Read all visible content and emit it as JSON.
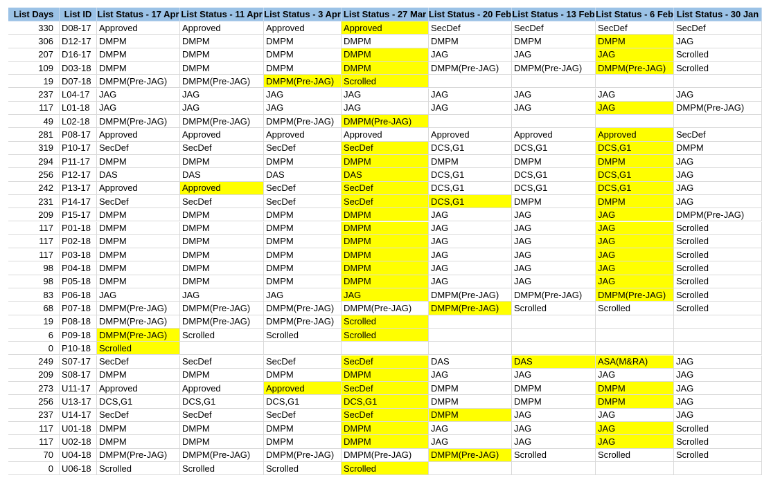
{
  "table": {
    "header": [
      "List Days",
      "List ID",
      "List Status - 17 Apr",
      "List Status - 11 Apr",
      "List Status - 3 Apr",
      "List Status - 27 Mar",
      "List Status - 20 Feb",
      "List Status - 13 Feb",
      "List Status - 6 Feb",
      "List Status - 30 Jan"
    ],
    "rows": [
      [
        330,
        "D08-17",
        "Approved",
        "Approved",
        "Approved",
        "Approved",
        "SecDef",
        "SecDef",
        "SecDef",
        "SecDef"
      ],
      [
        306,
        "D12-17",
        "DMPM",
        "DMPM",
        "DMPM",
        "DMPM",
        "DMPM",
        "DMPM",
        "DMPM",
        "JAG"
      ],
      [
        207,
        "D16-17",
        "DMPM",
        "DMPM",
        "DMPM",
        "DMPM",
        "JAG",
        "JAG",
        "JAG",
        "Scrolled"
      ],
      [
        109,
        "D03-18",
        "DMPM",
        "DMPM",
        "DMPM",
        "DMPM",
        "DMPM(Pre-JAG)",
        "DMPM(Pre-JAG)",
        "DMPM(Pre-JAG)",
        "Scrolled"
      ],
      [
        19,
        "D07-18",
        "DMPM(Pre-JAG)",
        "DMPM(Pre-JAG)",
        "DMPM(Pre-JAG)",
        "Scrolled",
        null,
        null,
        null,
        null
      ],
      [
        237,
        "L04-17",
        "JAG",
        "JAG",
        "JAG",
        "JAG",
        "JAG",
        "JAG",
        "JAG",
        "JAG"
      ],
      [
        117,
        "L01-18",
        "JAG",
        "JAG",
        "JAG",
        "JAG",
        "JAG",
        "JAG",
        "JAG",
        "DMPM(Pre-JAG)"
      ],
      [
        49,
        "L02-18",
        "DMPM(Pre-JAG)",
        "DMPM(Pre-JAG)",
        "DMPM(Pre-JAG)",
        "DMPM(Pre-JAG)",
        null,
        null,
        null,
        null
      ],
      [
        281,
        "P08-17",
        "Approved",
        "Approved",
        "Approved",
        "Approved",
        "Approved",
        "Approved",
        "Approved",
        "SecDef"
      ],
      [
        319,
        "P10-17",
        "SecDef",
        "SecDef",
        "SecDef",
        "SecDef",
        "DCS,G1",
        "DCS,G1",
        "DCS,G1",
        "DMPM"
      ],
      [
        294,
        "P11-17",
        "DMPM",
        "DMPM",
        "DMPM",
        "DMPM",
        "DMPM",
        "DMPM",
        "DMPM",
        "JAG"
      ],
      [
        256,
        "P12-17",
        "DAS",
        "DAS",
        "DAS",
        "DAS",
        "DCS,G1",
        "DCS,G1",
        "DCS,G1",
        "JAG"
      ],
      [
        242,
        "P13-17",
        "Approved",
        "Approved",
        "SecDef",
        "SecDef",
        "DCS,G1",
        "DCS,G1",
        "DCS,G1",
        "JAG"
      ],
      [
        231,
        "P14-17",
        "SecDef",
        "SecDef",
        "SecDef",
        "SecDef",
        "DCS,G1",
        "DMPM",
        "DMPM",
        "JAG"
      ],
      [
        209,
        "P15-17",
        "DMPM",
        "DMPM",
        "DMPM",
        "DMPM",
        "JAG",
        "JAG",
        "JAG",
        "DMPM(Pre-JAG)"
      ],
      [
        117,
        "P01-18",
        "DMPM",
        "DMPM",
        "DMPM",
        "DMPM",
        "JAG",
        "JAG",
        "JAG",
        "Scrolled"
      ],
      [
        117,
        "P02-18",
        "DMPM",
        "DMPM",
        "DMPM",
        "DMPM",
        "JAG",
        "JAG",
        "JAG",
        "Scrolled"
      ],
      [
        117,
        "P03-18",
        "DMPM",
        "DMPM",
        "DMPM",
        "DMPM",
        "JAG",
        "JAG",
        "JAG",
        "Scrolled"
      ],
      [
        98,
        "P04-18",
        "DMPM",
        "DMPM",
        "DMPM",
        "DMPM",
        "JAG",
        "JAG",
        "JAG",
        "Scrolled"
      ],
      [
        98,
        "P05-18",
        "DMPM",
        "DMPM",
        "DMPM",
        "DMPM",
        "JAG",
        "JAG",
        "JAG",
        "Scrolled"
      ],
      [
        83,
        "P06-18",
        "JAG",
        "JAG",
        "JAG",
        "JAG",
        "DMPM(Pre-JAG)",
        "DMPM(Pre-JAG)",
        "DMPM(Pre-JAG)",
        "Scrolled"
      ],
      [
        68,
        "P07-18",
        "DMPM(Pre-JAG)",
        "DMPM(Pre-JAG)",
        "DMPM(Pre-JAG)",
        "DMPM(Pre-JAG)",
        "DMPM(Pre-JAG)",
        "Scrolled",
        "Scrolled",
        "Scrolled"
      ],
      [
        19,
        "P08-18",
        "DMPM(Pre-JAG)",
        "DMPM(Pre-JAG)",
        "DMPM(Pre-JAG)",
        "Scrolled",
        null,
        null,
        null,
        null
      ],
      [
        6,
        "P09-18",
        "DMPM(Pre-JAG)",
        "Scrolled",
        "Scrolled",
        "Scrolled",
        null,
        null,
        null,
        null
      ],
      [
        0,
        "P10-18",
        "Scrolled",
        null,
        null,
        null,
        null,
        null,
        null,
        null
      ],
      [
        249,
        "S07-17",
        "SecDef",
        "SecDef",
        "SecDef",
        "SecDef",
        "DAS",
        "DAS",
        "ASA(M&RA)",
        "JAG"
      ],
      [
        209,
        "S08-17",
        "DMPM",
        "DMPM",
        "DMPM",
        "DMPM",
        "JAG",
        "JAG",
        "JAG",
        "JAG"
      ],
      [
        273,
        "U11-17",
        "Approved",
        "Approved",
        "Approved",
        "SecDef",
        "DMPM",
        "DMPM",
        "DMPM",
        "JAG"
      ],
      [
        256,
        "U13-17",
        "DCS,G1",
        "DCS,G1",
        "DCS,G1",
        "DCS,G1",
        "DMPM",
        "DMPM",
        "DMPM",
        "JAG"
      ],
      [
        237,
        "U14-17",
        "SecDef",
        "SecDef",
        "SecDef",
        "SecDef",
        "DMPM",
        "JAG",
        "JAG",
        "JAG"
      ],
      [
        117,
        "U01-18",
        "DMPM",
        "DMPM",
        "DMPM",
        "DMPM",
        "JAG",
        "JAG",
        "JAG",
        "Scrolled"
      ],
      [
        117,
        "U02-18",
        "DMPM",
        "DMPM",
        "DMPM",
        "DMPM",
        "JAG",
        "JAG",
        "JAG",
        "Scrolled"
      ],
      [
        70,
        "U04-18",
        "DMPM(Pre-JAG)",
        "DMPM(Pre-JAG)",
        "DMPM(Pre-JAG)",
        "DMPM(Pre-JAG)",
        "DMPM(Pre-JAG)",
        "Scrolled",
        "Scrolled",
        "Scrolled"
      ],
      [
        0,
        "U06-18",
        "Scrolled",
        "Scrolled",
        "Scrolled",
        "Scrolled",
        null,
        null,
        null,
        null
      ]
    ],
    "highlight_color": "#ffff00",
    "highlighted": [
      [
        5
      ],
      [
        8
      ],
      [
        5,
        8
      ],
      [
        5,
        8
      ],
      [
        4,
        5
      ],
      [],
      [
        8
      ],
      [
        5
      ],
      [
        8
      ],
      [
        5,
        8
      ],
      [
        5,
        8
      ],
      [
        5,
        8
      ],
      [
        3,
        5,
        8
      ],
      [
        5,
        6,
        8
      ],
      [
        5,
        8
      ],
      [
        5,
        8
      ],
      [
        5,
        8
      ],
      [
        5,
        8
      ],
      [
        5,
        8
      ],
      [
        5,
        8
      ],
      [
        5,
        8
      ],
      [
        6
      ],
      [
        5
      ],
      [
        2,
        5
      ],
      [
        2
      ],
      [
        5,
        7,
        8
      ],
      [
        5
      ],
      [
        4,
        5,
        8
      ],
      [
        5,
        8
      ],
      [
        5,
        6
      ],
      [
        5,
        8
      ],
      [
        5,
        8
      ],
      [
        6
      ],
      [
        5
      ]
    ]
  }
}
